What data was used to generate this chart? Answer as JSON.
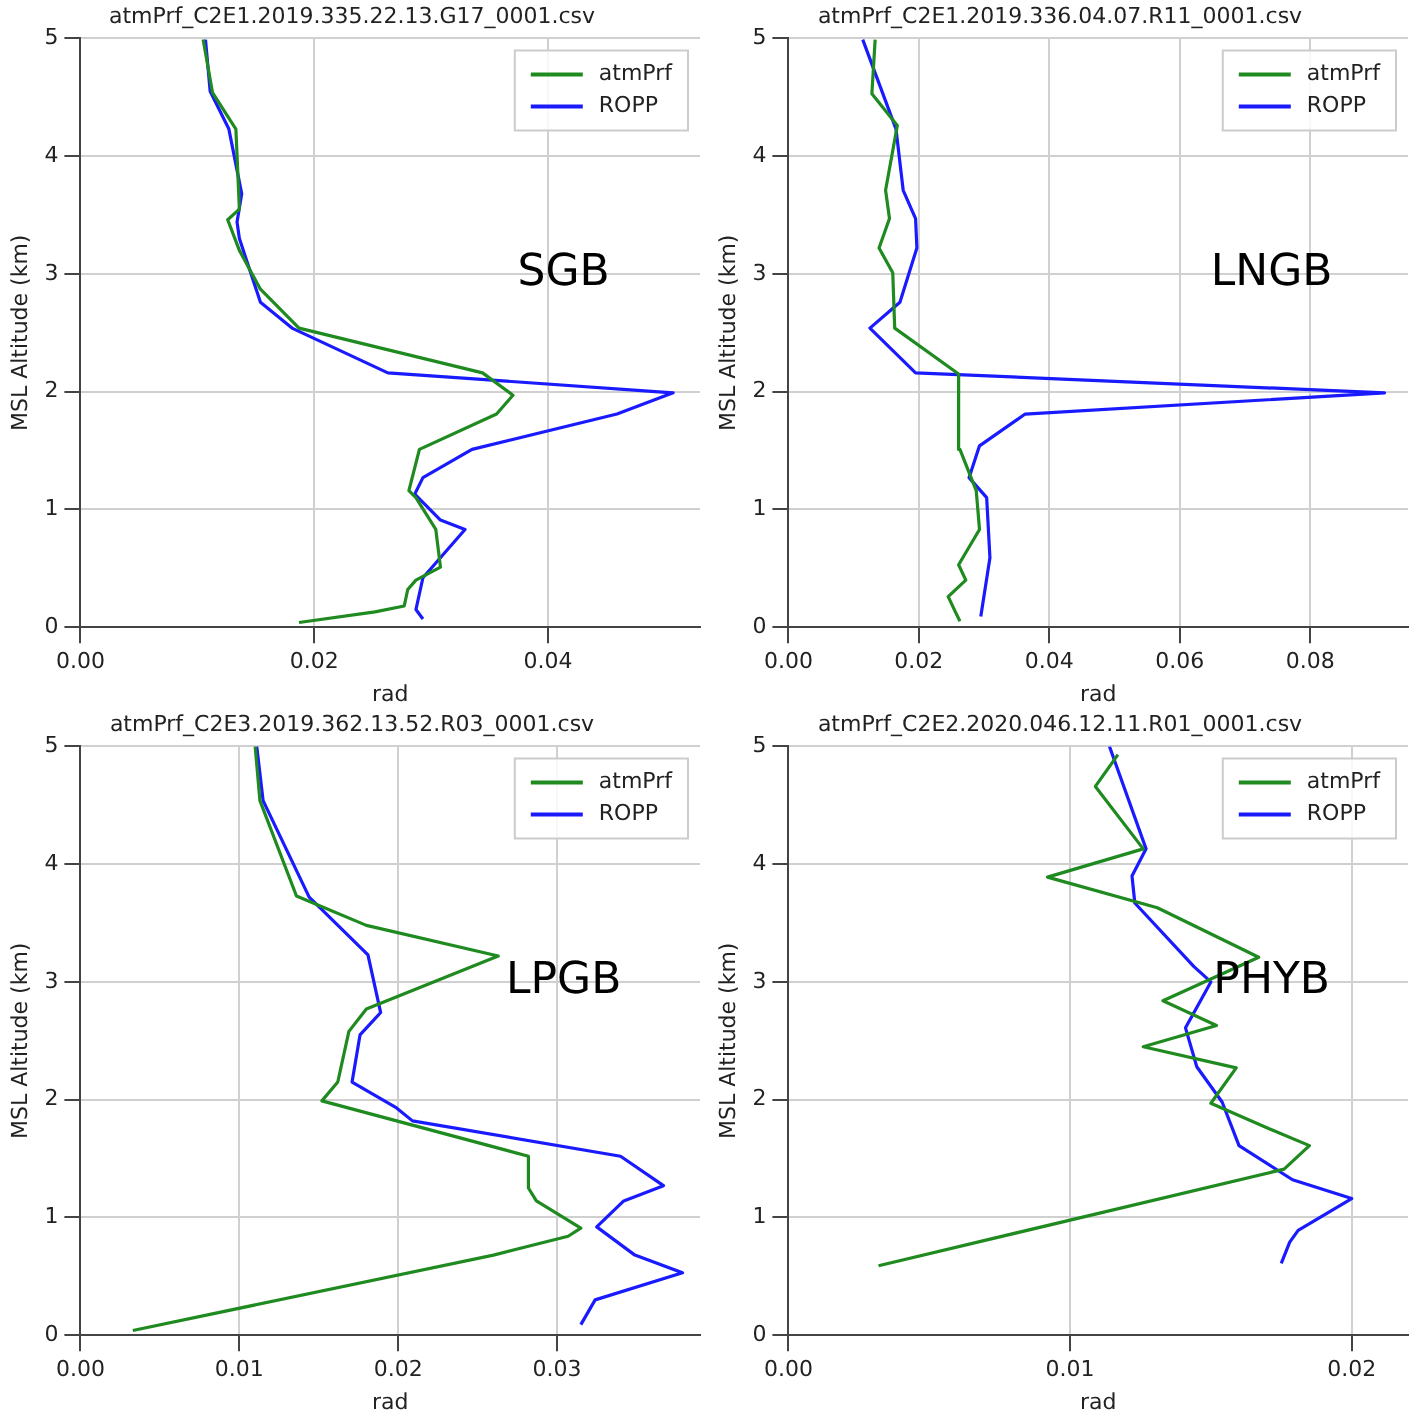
{
  "chart_data": [
    {
      "type": "line",
      "title": "atmPrf_C2E1.2019.335.22.13.G17_0001.csv",
      "xlabel": "rad",
      "ylabel": "MSL Altitude (km)",
      "xlim": [
        0,
        0.053
      ],
      "xticks": [
        {
          "value": 0,
          "label": "0.00"
        },
        {
          "value": 0.02,
          "label": "0.02"
        },
        {
          "value": 0.04,
          "label": "0.04"
        }
      ],
      "ylim": [
        0,
        5
      ],
      "yticks": [
        0,
        1,
        2,
        3,
        4,
        5
      ],
      "grid": true,
      "legend": "top right",
      "marker": "none",
      "line_style": "solid",
      "annotations": [
        "SGB"
      ],
      "series": [
        {
          "name": "atmPrf",
          "color": "#1f8a1f",
          "x": [
            0.0187,
            0.0252,
            0.0277,
            0.028,
            0.0287,
            0.0308,
            0.0304,
            0.0287,
            0.0281,
            0.029,
            0.0356,
            0.037,
            0.0344,
            0.0187,
            0.0154,
            0.0136,
            0.0126,
            0.0136,
            0.0133,
            0.0113,
            0.0105
          ],
          "values": [
            0.04,
            0.13,
            0.18,
            0.32,
            0.4,
            0.51,
            0.83,
            1.1,
            1.16,
            1.51,
            1.81,
            1.97,
            2.16,
            2.54,
            2.87,
            3.2,
            3.46,
            3.55,
            4.23,
            4.54,
            4.99
          ]
        },
        {
          "name": "ROPP",
          "color": "#1a1aff",
          "x": [
            0.0293,
            0.0287,
            0.0293,
            0.0329,
            0.0308,
            0.0286,
            0.0293,
            0.0335,
            0.0459,
            0.0507,
            0.0263,
            0.0181,
            0.0154,
            0.0136,
            0.0134,
            0.0138,
            0.0127,
            0.0111,
            0.0107
          ],
          "values": [
            0.07,
            0.15,
            0.42,
            0.83,
            0.91,
            1.13,
            1.27,
            1.51,
            1.81,
            1.99,
            2.16,
            2.54,
            2.76,
            3.3,
            3.44,
            3.68,
            4.23,
            4.55,
            4.99
          ]
        }
      ]
    },
    {
      "type": "line",
      "title": "atmPrf_C2E1.2019.336.04.07.R11_0001.csv",
      "xlabel": "rad",
      "ylabel": "MSL Altitude (km)",
      "xlim": [
        0,
        0.095
      ],
      "xticks": [
        {
          "value": 0,
          "label": "0.00"
        },
        {
          "value": 0.02,
          "label": "0.02"
        },
        {
          "value": 0.04,
          "label": "0.04"
        },
        {
          "value": 0.06,
          "label": "0.06"
        },
        {
          "value": 0.08,
          "label": "0.08"
        }
      ],
      "ylim": [
        0,
        5
      ],
      "yticks": [
        0,
        1,
        2,
        3,
        4,
        5
      ],
      "grid": true,
      "legend": "top right",
      "marker": "none",
      "line_style": "solid",
      "annotations": [
        "LNGB"
      ],
      "series": [
        {
          "name": "atmPrf",
          "color": "#1f8a1f",
          "x": [
            0.0263,
            0.0256,
            0.0245,
            0.0272,
            0.0261,
            0.0293,
            0.0288,
            0.0263,
            0.0261,
            0.0163,
            0.016,
            0.0139,
            0.0155,
            0.0149,
            0.0167,
            0.0128,
            0.0133
          ],
          "values": [
            0.05,
            0.13,
            0.26,
            0.4,
            0.53,
            0.83,
            1.16,
            1.51,
            2.15,
            2.54,
            3.01,
            3.22,
            3.47,
            3.71,
            4.26,
            4.53,
            4.99
          ]
        },
        {
          "name": "ROPP",
          "color": "#1a1aff",
          "x": [
            0.0295,
            0.0309,
            0.0304,
            0.0277,
            0.0293,
            0.0363,
            0.0914,
            0.0195,
            0.0125,
            0.0171,
            0.0197,
            0.0195,
            0.0176,
            0.0165,
            0.0114
          ],
          "values": [
            0.09,
            0.59,
            1.1,
            1.27,
            1.54,
            1.81,
            1.99,
            2.16,
            2.54,
            2.76,
            3.22,
            3.47,
            3.71,
            4.23,
            4.99
          ]
        }
      ]
    },
    {
      "type": "line",
      "title": "atmPrf_C2E3.2019.362.13.52.R03_0001.csv",
      "xlabel": "rad",
      "ylabel": "MSL Altitude (km)",
      "xlim": [
        0,
        0.039
      ],
      "xticks": [
        {
          "value": 0,
          "label": "0.00"
        },
        {
          "value": 0.01,
          "label": "0.01"
        },
        {
          "value": 0.02,
          "label": "0.02"
        },
        {
          "value": 0.03,
          "label": "0.03"
        }
      ],
      "ylim": [
        0,
        5
      ],
      "yticks": [
        0,
        1,
        2,
        3,
        4,
        5
      ],
      "grid": true,
      "legend": "top right",
      "marker": "none",
      "line_style": "solid",
      "annotations": [
        "LPGB"
      ],
      "series": [
        {
          "name": "atmPrf",
          "color": "#1f8a1f",
          "x": [
            0.0033,
            0.026,
            0.0307,
            0.0315,
            0.0287,
            0.0282,
            0.0282,
            0.0152,
            0.0162,
            0.0169,
            0.018,
            0.0263,
            0.018,
            0.0136,
            0.0113,
            0.011
          ],
          "values": [
            0.04,
            0.68,
            0.84,
            0.91,
            1.14,
            1.25,
            1.52,
            1.99,
            2.15,
            2.58,
            2.77,
            3.22,
            3.48,
            3.73,
            4.54,
            5
          ]
        },
        {
          "name": "ROPP",
          "color": "#1a1aff",
          "x": [
            0.0315,
            0.0324,
            0.0379,
            0.0349,
            0.0325,
            0.0342,
            0.0367,
            0.034,
            0.0209,
            0.0199,
            0.0171,
            0.0176,
            0.0189,
            0.0181,
            0.0144,
            0.0115,
            0.0111
          ],
          "values": [
            0.09,
            0.3,
            0.53,
            0.68,
            0.92,
            1.14,
            1.27,
            1.52,
            1.82,
            1.93,
            2.15,
            2.55,
            2.74,
            3.23,
            3.72,
            4.54,
            5
          ]
        }
      ]
    },
    {
      "type": "line",
      "title": "atmPrf_C2E2.2020.046.12.11.R01_0001.csv",
      "xlabel": "rad",
      "ylabel": "MSL Altitude (km)",
      "xlim": [
        0,
        0.022
      ],
      "xticks": [
        {
          "value": 0,
          "label": "0.00"
        },
        {
          "value": 0.01,
          "label": "0.01"
        },
        {
          "value": 0.02,
          "label": "0.02"
        }
      ],
      "ylim": [
        0,
        5
      ],
      "yticks": [
        0,
        1,
        2,
        3,
        4,
        5
      ],
      "grid": true,
      "legend": "top right",
      "marker": "none",
      "line_style": "solid",
      "annotations": [
        "PHYB"
      ],
      "series": [
        {
          "name": "atmPrf",
          "color": "#1f8a1f",
          "x": [
            0.0032,
            0.0176,
            0.0185,
            0.0172,
            0.015,
            0.0159,
            0.0126,
            0.0152,
            0.0133,
            0.0167,
            0.0131,
            0.0092,
            0.0126,
            0.0109,
            0.0117
          ],
          "values": [
            0.59,
            1.41,
            1.61,
            1.74,
            1.97,
            2.27,
            2.45,
            2.63,
            2.84,
            3.21,
            3.63,
            3.89,
            4.13,
            4.66,
            4.93
          ]
        },
        {
          "name": "ROPP",
          "color": "#1a1aff",
          "x": [
            0.0175,
            0.0178,
            0.0181,
            0.02,
            0.0179,
            0.016,
            0.0154,
            0.0145,
            0.0141,
            0.015,
            0.0144,
            0.0123,
            0.0122,
            0.0127,
            0.0114
          ],
          "values": [
            0.61,
            0.79,
            0.89,
            1.16,
            1.32,
            1.61,
            1.98,
            2.28,
            2.61,
            3.0,
            3.13,
            3.67,
            3.9,
            4.13,
            5
          ]
        }
      ]
    }
  ]
}
